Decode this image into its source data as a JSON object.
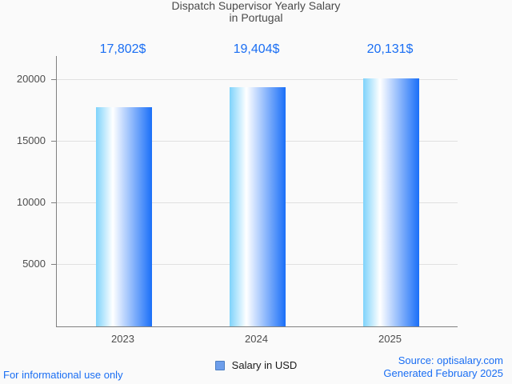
{
  "title": {
    "line1": "Dispatch Supervisor Yearly Salary",
    "line2": "in Portugal"
  },
  "chart_data": {
    "type": "bar",
    "title": "Dispatch Supervisor Yearly Salary in Portugal",
    "categories": [
      "2023",
      "2024",
      "2025"
    ],
    "series": [
      {
        "name": "Salary in USD",
        "values": [
          17802,
          19404,
          20131
        ]
      }
    ],
    "value_labels": [
      "17,802$",
      "19,404$",
      "20,131$"
    ],
    "yticks": [
      5000,
      10000,
      15000,
      20000
    ],
    "ytick_labels": [
      "5000",
      "10000",
      "15000",
      "20000"
    ],
    "ylim": [
      0,
      21950
    ],
    "xlabel": "",
    "ylabel": "",
    "grid": true,
    "legend_position": "bottom"
  },
  "legend": {
    "label": "Salary in USD"
  },
  "footer": {
    "left_note": "For informational use only",
    "source": "Source: optisalary.com",
    "generated": "Generated February 2025"
  },
  "colors": {
    "background": "#fafafa",
    "title_text": "#4a4a4a",
    "accent_text": "#1a6ef3",
    "axis": "#808080",
    "gridline": "#e0e0e0",
    "tick_label": "#4d4d4d",
    "bar_gradient_left": "#7ed3fb",
    "bar_gradient_mid": "#ffffff",
    "bar_gradient_right": "#1a6ff8",
    "legend_swatch_fill": "#6d9eeb",
    "legend_swatch_border": "#4b7ec2"
  }
}
